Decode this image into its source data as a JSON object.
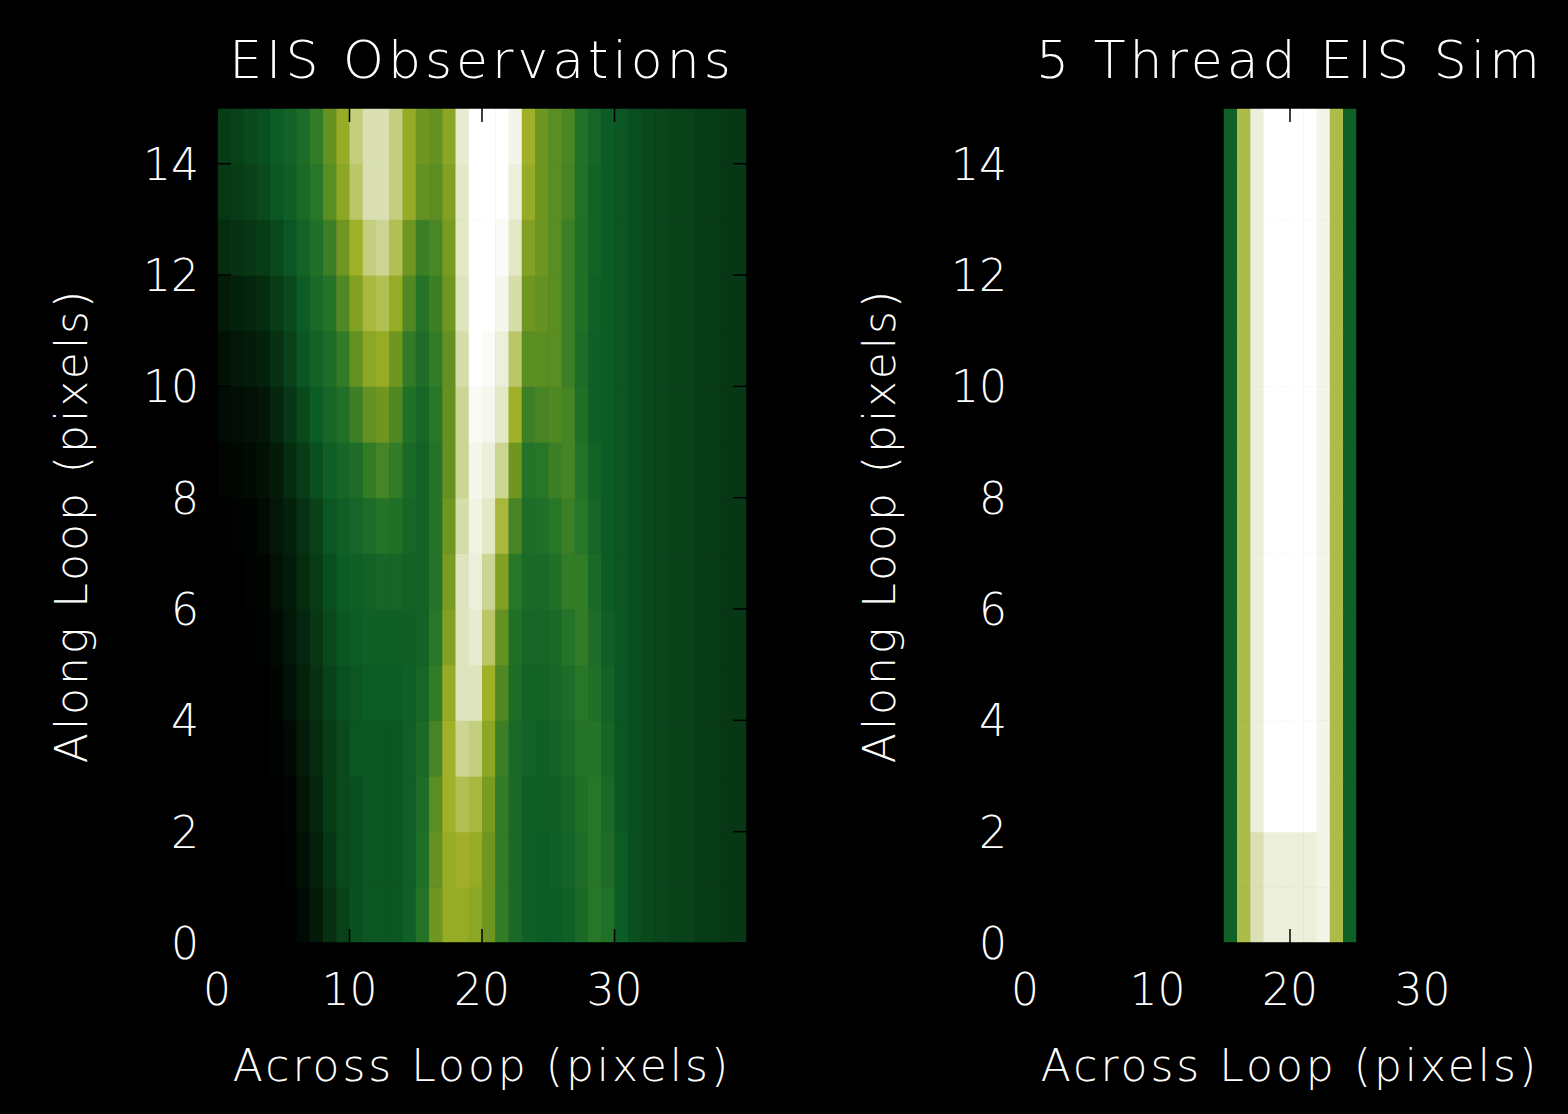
{
  "chart_data": [
    {
      "type": "heatmap",
      "title": "EIS Observations",
      "x_label": "Across Loop (pixels)",
      "y_label": "Along Loop (pixels)",
      "xlim": [
        0,
        40
      ],
      "ylim": [
        0,
        15
      ],
      "xticks": [
        0,
        10,
        20,
        30
      ],
      "yticks": [
        0,
        2,
        4,
        6,
        8,
        10,
        12,
        14
      ],
      "zlim": [
        0,
        100
      ],
      "cells": [
        [
          0,
          0,
          0,
          0,
          0,
          0,
          4,
          10,
          18,
          24,
          28,
          30,
          30,
          30,
          34,
          46,
          62,
          70,
          70,
          68,
          62,
          50,
          40,
          34,
          32,
          32,
          34,
          40,
          48,
          44,
          32,
          28,
          26,
          25,
          24,
          24,
          22,
          22,
          20,
          20
        ],
        [
          0,
          0,
          0,
          0,
          0,
          1,
          6,
          12,
          20,
          26,
          28,
          30,
          30,
          30,
          34,
          44,
          60,
          70,
          72,
          70,
          62,
          50,
          40,
          34,
          32,
          34,
          36,
          42,
          48,
          42,
          32,
          28,
          26,
          25,
          24,
          24,
          22,
          22,
          20,
          20
        ],
        [
          0,
          0,
          0,
          0,
          0,
          2,
          8,
          14,
          22,
          26,
          28,
          30,
          30,
          30,
          34,
          42,
          58,
          72,
          76,
          74,
          64,
          50,
          40,
          34,
          34,
          34,
          38,
          44,
          48,
          40,
          30,
          28,
          26,
          25,
          24,
          24,
          22,
          22,
          20,
          20
        ],
        [
          0,
          0,
          0,
          0,
          1,
          4,
          10,
          16,
          22,
          26,
          30,
          30,
          30,
          30,
          34,
          40,
          54,
          72,
          82,
          80,
          68,
          52,
          40,
          36,
          34,
          36,
          40,
          46,
          46,
          38,
          30,
          28,
          26,
          25,
          24,
          24,
          22,
          22,
          20,
          20
        ],
        [
          0,
          0,
          0,
          0,
          2,
          6,
          12,
          18,
          24,
          28,
          30,
          32,
          32,
          32,
          34,
          38,
          50,
          70,
          86,
          86,
          72,
          56,
          42,
          36,
          36,
          38,
          42,
          48,
          44,
          36,
          30,
          28,
          26,
          25,
          24,
          24,
          22,
          22,
          20,
          20
        ],
        [
          0,
          0,
          0,
          1,
          4,
          8,
          14,
          20,
          26,
          30,
          32,
          34,
          34,
          34,
          34,
          36,
          48,
          66,
          86,
          90,
          78,
          60,
          44,
          38,
          38,
          40,
          46,
          50,
          42,
          34,
          30,
          28,
          26,
          25,
          24,
          24,
          22,
          22,
          20,
          20
        ],
        [
          0,
          0,
          1,
          2,
          6,
          10,
          16,
          22,
          28,
          32,
          34,
          36,
          38,
          38,
          36,
          36,
          46,
          64,
          86,
          92,
          82,
          66,
          48,
          40,
          40,
          44,
          50,
          50,
          40,
          32,
          30,
          28,
          26,
          25,
          24,
          24,
          22,
          22,
          20,
          20
        ],
        [
          0,
          1,
          2,
          4,
          8,
          12,
          18,
          24,
          30,
          34,
          38,
          42,
          46,
          44,
          38,
          36,
          46,
          62,
          84,
          94,
          88,
          74,
          54,
          42,
          44,
          48,
          52,
          48,
          38,
          32,
          30,
          28,
          26,
          25,
          24,
          24,
          22,
          22,
          20,
          20
        ],
        [
          2,
          3,
          4,
          6,
          10,
          16,
          22,
          28,
          34,
          38,
          42,
          50,
          54,
          50,
          40,
          36,
          46,
          60,
          82,
          96,
          92,
          82,
          62,
          46,
          48,
          52,
          54,
          46,
          36,
          32,
          30,
          28,
          26,
          25,
          24,
          24,
          22,
          22,
          20,
          20
        ],
        [
          4,
          5,
          6,
          8,
          14,
          20,
          26,
          32,
          38,
          44,
          52,
          60,
          62,
          56,
          44,
          38,
          48,
          60,
          82,
          98,
          96,
          88,
          72,
          52,
          54,
          56,
          54,
          44,
          34,
          32,
          30,
          28,
          26,
          25,
          24,
          24,
          22,
          22,
          20,
          20
        ],
        [
          6,
          8,
          10,
          12,
          18,
          24,
          30,
          36,
          42,
          50,
          60,
          68,
          70,
          62,
          50,
          42,
          50,
          60,
          84,
          100,
          98,
          92,
          78,
          58,
          58,
          58,
          52,
          42,
          34,
          32,
          30,
          28,
          26,
          25,
          24,
          24,
          22,
          22,
          20,
          20
        ],
        [
          10,
          12,
          14,
          16,
          22,
          26,
          32,
          40,
          46,
          56,
          66,
          74,
          76,
          70,
          56,
          46,
          52,
          62,
          86,
          100,
          100,
          96,
          84,
          62,
          60,
          58,
          52,
          44,
          35,
          32,
          30,
          28,
          26,
          25,
          24,
          24,
          22,
          22,
          20,
          20
        ],
        [
          16,
          18,
          20,
          22,
          26,
          30,
          36,
          44,
          52,
          62,
          72,
          80,
          82,
          76,
          62,
          52,
          55,
          64,
          88,
          100,
          100,
          98,
          88,
          66,
          62,
          58,
          52,
          44,
          36,
          32,
          30,
          28,
          26,
          25,
          24,
          24,
          22,
          22,
          20,
          20
        ],
        [
          20,
          22,
          24,
          26,
          30,
          34,
          40,
          48,
          58,
          68,
          78,
          85,
          85,
          80,
          70,
          60,
          58,
          66,
          88,
          100,
          100,
          100,
          92,
          70,
          62,
          58,
          54,
          45,
          36,
          32,
          30,
          28,
          26,
          25,
          24,
          24,
          22,
          22,
          20,
          20
        ],
        [
          22,
          24,
          26,
          28,
          32,
          36,
          42,
          50,
          60,
          70,
          80,
          85,
          85,
          80,
          70,
          62,
          60,
          68,
          90,
          100,
          100,
          100,
          95,
          72,
          62,
          58,
          55,
          45,
          38,
          32,
          30,
          28,
          26,
          25,
          24,
          24,
          22,
          22,
          20,
          20
        ]
      ]
    },
    {
      "type": "heatmap",
      "title": "5 Thread EIS Sim",
      "x_label": "Across Loop (pixels)",
      "y_label": "Along Loop (pixels)",
      "xlim": [
        0,
        40
      ],
      "ylim": [
        0,
        15
      ],
      "xticks": [
        0,
        10,
        20,
        30
      ],
      "yticks": [
        0,
        2,
        4,
        6,
        8,
        10,
        12,
        14
      ],
      "zlim": [
        0,
        100
      ],
      "cells": [
        [
          0,
          0,
          0,
          0,
          0,
          0,
          0,
          0,
          0,
          0,
          0,
          0,
          0,
          0,
          0,
          35,
          75,
          85,
          92,
          92,
          92,
          92,
          95,
          75,
          35,
          0,
          0,
          0,
          0,
          0,
          0,
          0,
          0,
          0,
          0,
          0,
          0,
          0,
          0,
          0
        ],
        [
          0,
          0,
          0,
          0,
          0,
          0,
          0,
          0,
          0,
          0,
          0,
          0,
          0,
          0,
          0,
          35,
          75,
          85,
          92,
          92,
          92,
          92,
          95,
          75,
          35,
          0,
          0,
          0,
          0,
          0,
          0,
          0,
          0,
          0,
          0,
          0,
          0,
          0,
          0,
          0
        ],
        [
          0,
          0,
          0,
          0,
          0,
          0,
          0,
          0,
          0,
          0,
          0,
          0,
          0,
          0,
          0,
          35,
          75,
          92,
          100,
          100,
          100,
          100,
          95,
          75,
          35,
          0,
          0,
          0,
          0,
          0,
          0,
          0,
          0,
          0,
          0,
          0,
          0,
          0,
          0,
          0
        ],
        [
          0,
          0,
          0,
          0,
          0,
          0,
          0,
          0,
          0,
          0,
          0,
          0,
          0,
          0,
          0,
          35,
          75,
          92,
          100,
          100,
          100,
          100,
          95,
          75,
          35,
          0,
          0,
          0,
          0,
          0,
          0,
          0,
          0,
          0,
          0,
          0,
          0,
          0,
          0,
          0
        ],
        [
          0,
          0,
          0,
          0,
          0,
          0,
          0,
          0,
          0,
          0,
          0,
          0,
          0,
          0,
          0,
          35,
          75,
          92,
          100,
          100,
          100,
          100,
          95,
          75,
          35,
          0,
          0,
          0,
          0,
          0,
          0,
          0,
          0,
          0,
          0,
          0,
          0,
          0,
          0,
          0
        ],
        [
          0,
          0,
          0,
          0,
          0,
          0,
          0,
          0,
          0,
          0,
          0,
          0,
          0,
          0,
          0,
          35,
          75,
          92,
          100,
          100,
          100,
          100,
          95,
          75,
          35,
          0,
          0,
          0,
          0,
          0,
          0,
          0,
          0,
          0,
          0,
          0,
          0,
          0,
          0,
          0
        ],
        [
          0,
          0,
          0,
          0,
          0,
          0,
          0,
          0,
          0,
          0,
          0,
          0,
          0,
          0,
          0,
          35,
          75,
          92,
          100,
          100,
          100,
          100,
          95,
          75,
          35,
          0,
          0,
          0,
          0,
          0,
          0,
          0,
          0,
          0,
          0,
          0,
          0,
          0,
          0,
          0
        ],
        [
          0,
          0,
          0,
          0,
          0,
          0,
          0,
          0,
          0,
          0,
          0,
          0,
          0,
          0,
          0,
          35,
          75,
          92,
          100,
          100,
          100,
          100,
          95,
          75,
          35,
          0,
          0,
          0,
          0,
          0,
          0,
          0,
          0,
          0,
          0,
          0,
          0,
          0,
          0,
          0
        ],
        [
          0,
          0,
          0,
          0,
          0,
          0,
          0,
          0,
          0,
          0,
          0,
          0,
          0,
          0,
          0,
          35,
          75,
          92,
          100,
          100,
          100,
          100,
          95,
          75,
          35,
          0,
          0,
          0,
          0,
          0,
          0,
          0,
          0,
          0,
          0,
          0,
          0,
          0,
          0,
          0
        ],
        [
          0,
          0,
          0,
          0,
          0,
          0,
          0,
          0,
          0,
          0,
          0,
          0,
          0,
          0,
          0,
          35,
          75,
          92,
          100,
          100,
          100,
          100,
          95,
          75,
          35,
          0,
          0,
          0,
          0,
          0,
          0,
          0,
          0,
          0,
          0,
          0,
          0,
          0,
          0,
          0
        ],
        [
          0,
          0,
          0,
          0,
          0,
          0,
          0,
          0,
          0,
          0,
          0,
          0,
          0,
          0,
          0,
          35,
          75,
          92,
          100,
          100,
          100,
          100,
          95,
          75,
          35,
          0,
          0,
          0,
          0,
          0,
          0,
          0,
          0,
          0,
          0,
          0,
          0,
          0,
          0,
          0
        ],
        [
          0,
          0,
          0,
          0,
          0,
          0,
          0,
          0,
          0,
          0,
          0,
          0,
          0,
          0,
          0,
          35,
          75,
          92,
          100,
          100,
          100,
          100,
          95,
          75,
          35,
          0,
          0,
          0,
          0,
          0,
          0,
          0,
          0,
          0,
          0,
          0,
          0,
          0,
          0,
          0
        ],
        [
          0,
          0,
          0,
          0,
          0,
          0,
          0,
          0,
          0,
          0,
          0,
          0,
          0,
          0,
          0,
          35,
          75,
          92,
          100,
          100,
          100,
          100,
          95,
          75,
          35,
          0,
          0,
          0,
          0,
          0,
          0,
          0,
          0,
          0,
          0,
          0,
          0,
          0,
          0,
          0
        ],
        [
          0,
          0,
          0,
          0,
          0,
          0,
          0,
          0,
          0,
          0,
          0,
          0,
          0,
          0,
          0,
          35,
          75,
          92,
          100,
          100,
          100,
          100,
          95,
          75,
          35,
          0,
          0,
          0,
          0,
          0,
          0,
          0,
          0,
          0,
          0,
          0,
          0,
          0,
          0,
          0
        ],
        [
          0,
          0,
          0,
          0,
          0,
          0,
          0,
          0,
          0,
          0,
          0,
          0,
          0,
          0,
          0,
          35,
          75,
          92,
          100,
          100,
          100,
          100,
          95,
          75,
          35,
          0,
          0,
          0,
          0,
          0,
          0,
          0,
          0,
          0,
          0,
          0,
          0,
          0,
          0,
          0
        ]
      ]
    }
  ]
}
